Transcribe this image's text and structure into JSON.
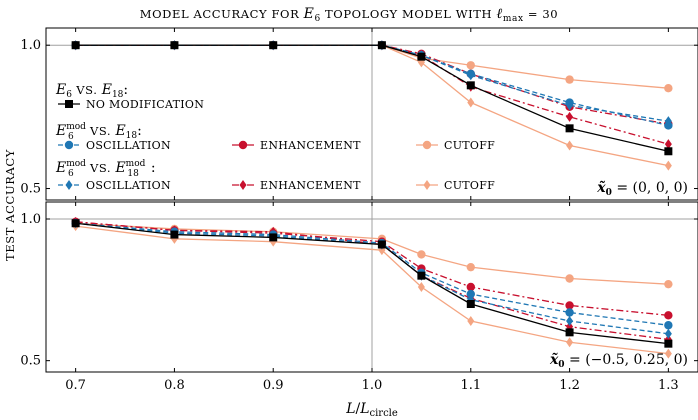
{
  "chart_data": {
    "type": "line",
    "title": "MODEL ACCURACY FOR E6 TOPOLOGY MODEL WITH ℓmax = 30",
    "title_parts": {
      "prefix": "MODEL ACCURACY FOR ",
      "model": "E",
      "model_sub": "6",
      "mid": " TOPOLOGY MODEL WITH ",
      "ell": "ℓ",
      "ell_sub": "max",
      "eq": " = 30"
    },
    "xlabel": "L/Lcircle",
    "xlabel_parts": {
      "L": "L",
      "slash": "/",
      "L2": "L",
      "sub": "circle"
    },
    "ylabel": "TEST ACCURACY",
    "x": [
      0.7,
      0.8,
      0.9,
      1.01,
      1.05,
      1.1,
      1.2,
      1.3
    ],
    "xticks": [
      0.7,
      0.8,
      0.9,
      1.0,
      1.1,
      1.2,
      1.3
    ],
    "xtick_labels": [
      "0.7",
      "0.8",
      "0.9",
      "1.0",
      "1.1",
      "1.2",
      "1.3"
    ],
    "xlim": [
      0.67,
      1.33
    ],
    "vline_x": 1.0,
    "colors": {
      "black": "#000000",
      "blue": "#1f77b4",
      "red": "#c8102e",
      "orange": "#f4a582",
      "grid": "#a0a0a0"
    },
    "legend": {
      "group1": {
        "a": "E",
        "a_sub": "6",
        "vs": " VS. ",
        "b": "E",
        "b_sub": "18",
        "end": ":"
      },
      "group2": {
        "a": "E",
        "a_sub": "6",
        "a_sup": "mod",
        "vs": " VS. ",
        "b": "E",
        "b_sub": "18",
        "end": ":"
      },
      "group3": {
        "a": "E",
        "a_sub": "6",
        "a_sup": "mod",
        "vs": " VS. ",
        "b": "E",
        "b_sub": "18",
        "b_sup": "mod",
        "end": ":"
      },
      "labels": {
        "none": "NO MODIFICATION",
        "osc": "OSCILLATION",
        "enh": "ENHANCEMENT",
        "cut": "CUTOFF"
      }
    },
    "panels": [
      {
        "name": "top",
        "ylim": [
          0.46,
          1.06
        ],
        "yticks": [
          0.5,
          1.0
        ],
        "ytick_labels": [
          "0.5",
          "1.0"
        ],
        "hline_y": 1.0,
        "annotation": {
          "x": "x̃",
          "sub": "0",
          "eq": " = (0, 0, 0)"
        },
        "series": [
          {
            "name": "NO MODIFICATION",
            "color": "black",
            "dash": "solid",
            "marker": "square",
            "values": [
              1.0,
              1.0,
              1.0,
              1.0,
              0.96,
              0.86,
              0.71,
              0.63
            ]
          },
          {
            "name": "OSCILLATION (E6mod vs E18)",
            "color": "blue",
            "dash": "dashed",
            "marker": "circle",
            "values": [
              1.0,
              1.0,
              1.0,
              1.0,
              0.965,
              0.9,
              0.8,
              0.72
            ]
          },
          {
            "name": "ENHANCEMENT (E6mod vs E18)",
            "color": "red",
            "dash": "dashdot",
            "marker": "circle",
            "values": [
              1.0,
              1.0,
              1.0,
              1.0,
              0.97,
              0.9,
              0.785,
              0.725
            ]
          },
          {
            "name": "CUTOFF (E6mod vs E18)",
            "color": "orange",
            "dash": "solid",
            "marker": "circle",
            "values": [
              1.0,
              1.0,
              1.0,
              1.0,
              0.955,
              0.93,
              0.88,
              0.85
            ]
          },
          {
            "name": "OSCILLATION (E6mod vs E18mod)",
            "color": "blue",
            "dash": "dashed",
            "marker": "diamond",
            "values": [
              1.0,
              1.0,
              1.0,
              1.0,
              0.965,
              0.895,
              0.79,
              0.735
            ]
          },
          {
            "name": "ENHANCEMENT (E6mod vs E18mod)",
            "color": "red",
            "dash": "dashdot",
            "marker": "diamond",
            "values": [
              1.0,
              1.0,
              1.0,
              1.0,
              0.965,
              0.855,
              0.75,
              0.655
            ]
          },
          {
            "name": "CUTOFF (E6mod vs E18mod)",
            "color": "orange",
            "dash": "solid",
            "marker": "diamond",
            "values": [
              1.0,
              1.0,
              1.0,
              1.0,
              0.94,
              0.8,
              0.65,
              0.58
            ]
          }
        ]
      },
      {
        "name": "bottom",
        "ylim": [
          0.46,
          1.06
        ],
        "yticks": [
          0.5,
          1.0
        ],
        "ytick_labels": [
          "0.5",
          "1.0"
        ],
        "hline_y": 1.0,
        "annotation": {
          "x": "x̃",
          "sub": "0",
          "eq": " = (−0.5, 0.25, 0)"
        },
        "series": [
          {
            "name": "NO MODIFICATION",
            "color": "black",
            "dash": "solid",
            "marker": "square",
            "values": [
              0.985,
              0.945,
              0.935,
              0.91,
              0.8,
              0.7,
              0.6,
              0.56
            ]
          },
          {
            "name": "OSCILLATION (E6mod vs E18)",
            "color": "blue",
            "dash": "dashed",
            "marker": "circle",
            "values": [
              0.985,
              0.955,
              0.945,
              0.915,
              0.81,
              0.735,
              0.67,
              0.625
            ]
          },
          {
            "name": "ENHANCEMENT (E6mod vs E18)",
            "color": "red",
            "dash": "dashdot",
            "marker": "circle",
            "values": [
              0.99,
              0.96,
              0.95,
              0.92,
              0.825,
              0.76,
              0.695,
              0.66
            ]
          },
          {
            "name": "CUTOFF (E6mod vs E18)",
            "color": "orange",
            "dash": "solid",
            "marker": "circle",
            "values": [
              0.985,
              0.965,
              0.955,
              0.93,
              0.875,
              0.83,
              0.79,
              0.77
            ]
          },
          {
            "name": "OSCILLATION (E6mod vs E18mod)",
            "color": "blue",
            "dash": "dashed",
            "marker": "diamond",
            "values": [
              0.985,
              0.95,
              0.94,
              0.91,
              0.8,
              0.715,
              0.64,
              0.595
            ]
          },
          {
            "name": "ENHANCEMENT (E6mod vs E18mod)",
            "color": "red",
            "dash": "dashdot",
            "marker": "diamond",
            "values": [
              0.99,
              0.96,
              0.955,
              0.91,
              0.8,
              0.72,
              0.62,
              0.575
            ]
          },
          {
            "name": "CUTOFF (E6mod vs E18mod)",
            "color": "orange",
            "dash": "solid",
            "marker": "diamond",
            "values": [
              0.975,
              0.93,
              0.92,
              0.89,
              0.76,
              0.64,
              0.565,
              0.525
            ]
          }
        ]
      }
    ]
  }
}
